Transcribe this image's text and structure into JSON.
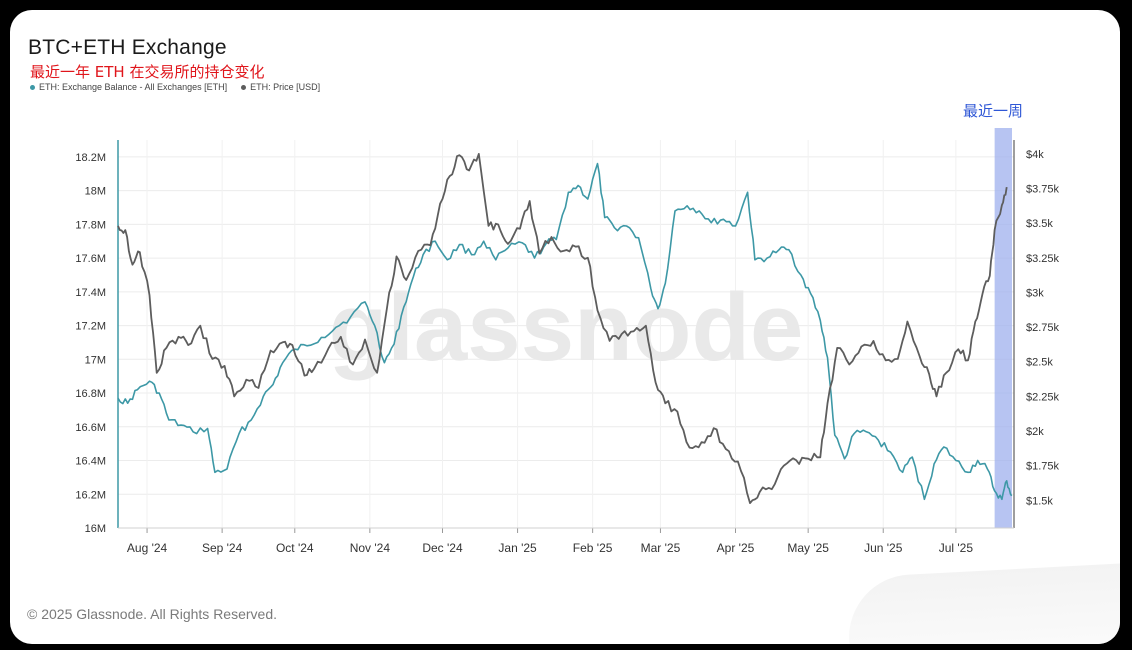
{
  "header": {
    "title": "BTC+ETH Exchange",
    "subtitle": "最近一年 ETH 在交易所的持仓变化"
  },
  "annotation": {
    "recent_week_label": "最近一周"
  },
  "watermark": "glassnode",
  "footer": {
    "copyright": "© 2025 Glassnode. All Rights Reserved."
  },
  "colors": {
    "balance": "#3d98a6",
    "price": "#5d5d5d",
    "recent_highlight": "#9fb0ee",
    "recent_label": "#2f57d6",
    "subtitle": "#e0151b"
  },
  "chart_data": {
    "type": "line",
    "title": "BTC+ETH Exchange",
    "subtitle": "最近一年 ETH 在交易所的持仓变化",
    "legend": [
      {
        "name": "ETH: Exchange Balance - All Exchanges [ETH]",
        "color": "#3d98a6"
      },
      {
        "name": "ETH: Price [USD]",
        "color": "#5d5d5d"
      }
    ],
    "legend_position": "top-left",
    "grid": true,
    "x_range": [
      "2024-07-20",
      "2025-07-25"
    ],
    "x_ticks": [
      "Aug '24",
      "Sep '24",
      "Oct '24",
      "Nov '24",
      "Dec '24",
      "Jan '25",
      "Feb '25",
      "Mar '25",
      "Apr '25",
      "May '25",
      "Jun '25",
      "Jul '25"
    ],
    "y_left": {
      "range": [
        16000000,
        18300000
      ],
      "ticks": [
        "16M",
        "16.2M",
        "16.4M",
        "16.6M",
        "16.8M",
        "17M",
        "17.2M",
        "17.4M",
        "17.6M",
        "17.8M",
        "18M",
        "18.2M"
      ],
      "tick_values": [
        16000000,
        16200000,
        16400000,
        16600000,
        16800000,
        17000000,
        17200000,
        17400000,
        17600000,
        17800000,
        18000000,
        18200000
      ]
    },
    "y_right": {
      "range": [
        1300,
        4100
      ],
      "ticks": [
        "$1.5k",
        "$1.75k",
        "$2k",
        "$2.25k",
        "$2.5k",
        "$2.75k",
        "$3k",
        "$3.25k",
        "$3.5k",
        "$3.75k",
        "$4k"
      ],
      "tick_values": [
        1500,
        1750,
        2000,
        2250,
        2500,
        2750,
        3000,
        3250,
        3500,
        3750,
        4000
      ]
    },
    "highlight_range": [
      "2025-07-17",
      "2025-07-24"
    ],
    "series": [
      {
        "name": "ETH: Exchange Balance - All Exchanges [ETH]",
        "axis": "left",
        "points": [
          [
            "2024-07-20",
            16770000
          ],
          [
            "2024-07-24",
            16740000
          ],
          [
            "2024-07-28",
            16820000
          ],
          [
            "2024-08-02",
            16870000
          ],
          [
            "2024-08-06",
            16800000
          ],
          [
            "2024-08-10",
            16640000
          ],
          [
            "2024-08-15",
            16610000
          ],
          [
            "2024-08-20",
            16570000
          ],
          [
            "2024-08-26",
            16590000
          ],
          [
            "2024-08-29",
            16330000
          ],
          [
            "2024-09-03",
            16350000
          ],
          [
            "2024-09-08",
            16560000
          ],
          [
            "2024-09-13",
            16640000
          ],
          [
            "2024-09-18",
            16780000
          ],
          [
            "2024-09-22",
            16850000
          ],
          [
            "2024-09-26",
            16980000
          ],
          [
            "2024-10-01",
            17060000
          ],
          [
            "2024-10-06",
            17080000
          ],
          [
            "2024-10-12",
            17130000
          ],
          [
            "2024-10-18",
            17190000
          ],
          [
            "2024-10-24",
            17250000
          ],
          [
            "2024-10-30",
            17340000
          ],
          [
            "2024-11-03",
            17200000
          ],
          [
            "2024-11-07",
            16980000
          ],
          [
            "2024-11-11",
            17090000
          ],
          [
            "2024-11-15",
            17310000
          ],
          [
            "2024-11-19",
            17490000
          ],
          [
            "2024-11-23",
            17620000
          ],
          [
            "2024-11-28",
            17700000
          ],
          [
            "2024-12-03",
            17590000
          ],
          [
            "2024-12-08",
            17680000
          ],
          [
            "2024-12-13",
            17620000
          ],
          [
            "2024-12-18",
            17700000
          ],
          [
            "2024-12-23",
            17590000
          ],
          [
            "2024-12-28",
            17660000
          ],
          [
            "2025-01-03",
            17690000
          ],
          [
            "2025-01-08",
            17600000
          ],
          [
            "2025-01-13",
            17690000
          ],
          [
            "2025-01-17",
            17710000
          ],
          [
            "2025-01-22",
            17990000
          ],
          [
            "2025-01-26",
            18030000
          ],
          [
            "2025-01-30",
            17950000
          ],
          [
            "2025-02-03",
            18160000
          ],
          [
            "2025-02-06",
            17840000
          ],
          [
            "2025-02-10",
            17780000
          ],
          [
            "2025-02-15",
            17790000
          ],
          [
            "2025-02-20",
            17720000
          ],
          [
            "2025-02-25",
            17420000
          ],
          [
            "2025-02-28",
            17300000
          ],
          [
            "2025-03-03",
            17450000
          ],
          [
            "2025-03-07",
            17880000
          ],
          [
            "2025-03-12",
            17910000
          ],
          [
            "2025-03-17",
            17880000
          ],
          [
            "2025-03-22",
            17810000
          ],
          [
            "2025-03-27",
            17830000
          ],
          [
            "2025-04-01",
            17790000
          ],
          [
            "2025-04-06",
            17990000
          ],
          [
            "2025-04-09",
            17590000
          ],
          [
            "2025-04-14",
            17600000
          ],
          [
            "2025-04-19",
            17650000
          ],
          [
            "2025-04-23",
            17650000
          ],
          [
            "2025-04-28",
            17500000
          ],
          [
            "2025-05-02",
            17390000
          ],
          [
            "2025-05-06",
            17230000
          ],
          [
            "2025-05-09",
            17010000
          ],
          [
            "2025-05-12",
            16550000
          ],
          [
            "2025-05-16",
            16410000
          ],
          [
            "2025-05-20",
            16560000
          ],
          [
            "2025-05-25",
            16570000
          ],
          [
            "2025-05-30",
            16520000
          ],
          [
            "2025-06-04",
            16450000
          ],
          [
            "2025-06-09",
            16330000
          ],
          [
            "2025-06-13",
            16420000
          ],
          [
            "2025-06-18",
            16170000
          ],
          [
            "2025-06-22",
            16380000
          ],
          [
            "2025-06-26",
            16480000
          ],
          [
            "2025-07-01",
            16400000
          ],
          [
            "2025-07-06",
            16330000
          ],
          [
            "2025-07-10",
            16400000
          ],
          [
            "2025-07-14",
            16350000
          ],
          [
            "2025-07-17",
            16220000
          ],
          [
            "2025-07-20",
            16170000
          ],
          [
            "2025-07-22",
            16280000
          ],
          [
            "2025-07-24",
            16190000
          ]
        ]
      },
      {
        "name": "ETH: Price [USD]",
        "axis": "right",
        "points": [
          [
            "2024-07-20",
            3480
          ],
          [
            "2024-07-23",
            3450
          ],
          [
            "2024-07-26",
            3200
          ],
          [
            "2024-07-29",
            3290
          ],
          [
            "2024-08-02",
            2980
          ],
          [
            "2024-08-05",
            2420
          ],
          [
            "2024-08-09",
            2600
          ],
          [
            "2024-08-14",
            2680
          ],
          [
            "2024-08-18",
            2620
          ],
          [
            "2024-08-23",
            2760
          ],
          [
            "2024-08-28",
            2520
          ],
          [
            "2024-09-02",
            2470
          ],
          [
            "2024-09-06",
            2250
          ],
          [
            "2024-09-11",
            2370
          ],
          [
            "2024-09-16",
            2310
          ],
          [
            "2024-09-21",
            2580
          ],
          [
            "2024-09-26",
            2640
          ],
          [
            "2024-09-30",
            2620
          ],
          [
            "2024-10-05",
            2400
          ],
          [
            "2024-10-09",
            2450
          ],
          [
            "2024-10-15",
            2600
          ],
          [
            "2024-10-20",
            2680
          ],
          [
            "2024-10-25",
            2480
          ],
          [
            "2024-10-30",
            2660
          ],
          [
            "2024-11-04",
            2420
          ],
          [
            "2024-11-08",
            2880
          ],
          [
            "2024-11-12",
            3260
          ],
          [
            "2024-11-16",
            3090
          ],
          [
            "2024-11-21",
            3300
          ],
          [
            "2024-11-26",
            3340
          ],
          [
            "2024-11-30",
            3640
          ],
          [
            "2024-12-04",
            3840
          ],
          [
            "2024-12-08",
            3990
          ],
          [
            "2024-12-12",
            3880
          ],
          [
            "2024-12-16",
            4000
          ],
          [
            "2024-12-20",
            3480
          ],
          [
            "2024-12-24",
            3490
          ],
          [
            "2024-12-28",
            3350
          ],
          [
            "2025-01-02",
            3460
          ],
          [
            "2025-01-06",
            3660
          ],
          [
            "2025-01-10",
            3280
          ],
          [
            "2025-01-15",
            3400
          ],
          [
            "2025-01-20",
            3300
          ],
          [
            "2025-01-25",
            3330
          ],
          [
            "2025-01-30",
            3250
          ],
          [
            "2025-02-03",
            2870
          ],
          [
            "2025-02-08",
            2650
          ],
          [
            "2025-02-13",
            2700
          ],
          [
            "2025-02-18",
            2720
          ],
          [
            "2025-02-23",
            2760
          ],
          [
            "2025-02-27",
            2350
          ],
          [
            "2025-03-03",
            2200
          ],
          [
            "2025-03-08",
            2140
          ],
          [
            "2025-03-13",
            1880
          ],
          [
            "2025-03-18",
            1920
          ],
          [
            "2025-03-23",
            2020
          ],
          [
            "2025-03-28",
            1870
          ],
          [
            "2025-04-02",
            1780
          ],
          [
            "2025-04-07",
            1480
          ],
          [
            "2025-04-11",
            1560
          ],
          [
            "2025-04-16",
            1580
          ],
          [
            "2025-04-21",
            1750
          ],
          [
            "2025-04-26",
            1790
          ],
          [
            "2025-05-01",
            1800
          ],
          [
            "2025-05-06",
            1810
          ],
          [
            "2025-05-09",
            2200
          ],
          [
            "2025-05-13",
            2600
          ],
          [
            "2025-05-18",
            2480
          ],
          [
            "2025-05-23",
            2610
          ],
          [
            "2025-05-28",
            2650
          ],
          [
            "2025-06-02",
            2510
          ],
          [
            "2025-06-07",
            2520
          ],
          [
            "2025-06-11",
            2790
          ],
          [
            "2025-06-16",
            2540
          ],
          [
            "2025-06-20",
            2410
          ],
          [
            "2025-06-23",
            2250
          ],
          [
            "2025-06-27",
            2420
          ],
          [
            "2025-07-02",
            2590
          ],
          [
            "2025-07-06",
            2510
          ],
          [
            "2025-07-09",
            2790
          ],
          [
            "2025-07-12",
            2990
          ],
          [
            "2025-07-15",
            3120
          ],
          [
            "2025-07-17",
            3450
          ],
          [
            "2025-07-20",
            3630
          ],
          [
            "2025-07-22",
            3760
          ]
        ]
      }
    ]
  }
}
